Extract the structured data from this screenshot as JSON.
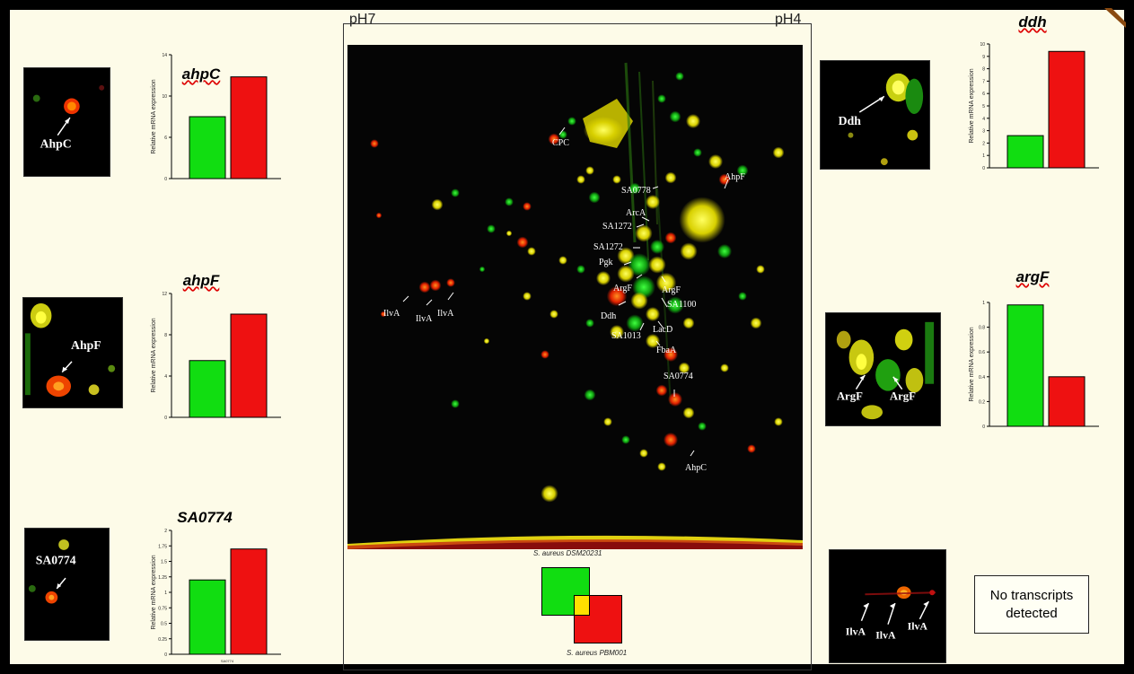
{
  "colors": {
    "green": "#11dd11",
    "red": "#ee1111",
    "yellow": "#ffe000",
    "background": "#fdfbe8"
  },
  "gel": {
    "ph_left": "pH7",
    "ph_right": "pH4",
    "spot_labels": [
      "CPC",
      "SA0778",
      "AhpF",
      "ArcA",
      "SA1272",
      "SA1272",
      "Pgk",
      "ArgF",
      "ArgF",
      "SA1100",
      "Ddh",
      "SA1013",
      "LacD",
      "FbaA",
      "SA0774",
      "AhpC",
      "IlvA",
      "IlvA",
      "IlvA"
    ]
  },
  "legend": {
    "top": "S. aureus DSM20231",
    "bottom": "S. aureus PBM001"
  },
  "panels": [
    {
      "gene": "ahpC",
      "inset_label": "AhpC",
      "ylabel": "Relative mRNA expression",
      "ylim": [
        0,
        14
      ],
      "ticks": [
        "14",
        "10",
        "6",
        "0"
      ],
      "values": [
        7.0,
        11.5
      ]
    },
    {
      "gene": "ahpF",
      "inset_label": "AhpF",
      "ylabel": "Relative mRNA expression",
      "ylim": [
        0,
        12
      ],
      "ticks": [
        "12",
        "8",
        "4",
        "0"
      ],
      "values": [
        5.5,
        10.0
      ]
    },
    {
      "gene": "SA0774",
      "inset_label": "SA0774",
      "ylabel": "Relative mRNA expression",
      "ylim": [
        0,
        2
      ],
      "ticks": [
        "2",
        "1.75",
        "1.5",
        "1.25",
        "1",
        "0.75",
        "0.5",
        "0.25",
        "0"
      ],
      "values": [
        1.2,
        1.7
      ],
      "xlabel": "SA0774"
    },
    {
      "gene": "ddh",
      "inset_label": "Ddh",
      "ylabel": "Relative mRNA expression",
      "ylim": [
        0,
        10
      ],
      "ticks": [
        "10",
        "9",
        "8",
        "7",
        "6",
        "5",
        "4",
        "3",
        "2",
        "1",
        "0"
      ],
      "values": [
        2.6,
        9.4
      ]
    },
    {
      "gene": "argF",
      "inset_label": "ArgF",
      "ylabel": "Relative mRNA expression",
      "ylim": [
        0,
        1
      ],
      "ticks": [
        "1",
        "0.8",
        "0.6",
        "0.4",
        "0.2",
        "0"
      ],
      "values": [
        0.98,
        0.4
      ]
    }
  ],
  "ilva": {
    "inset_label": "IlvA",
    "note_line1": "No transcripts",
    "note_line2": "detected"
  }
}
